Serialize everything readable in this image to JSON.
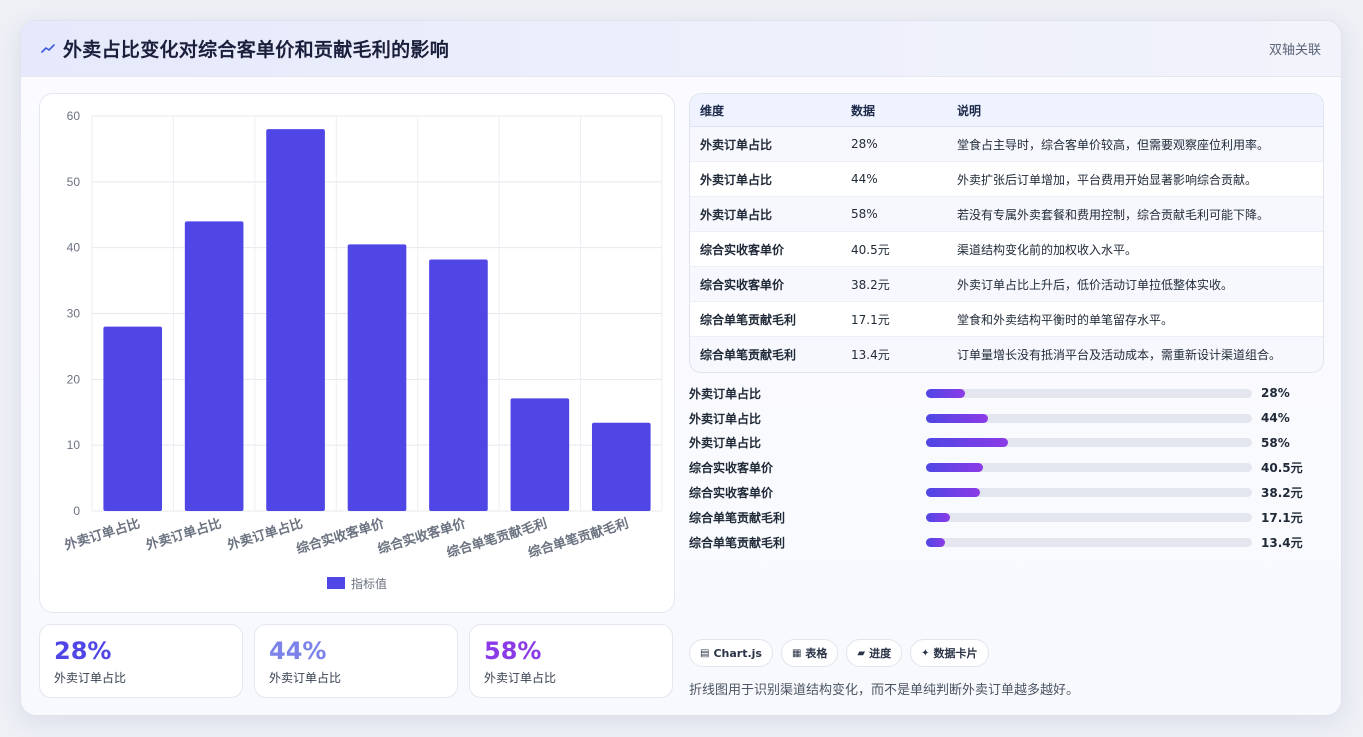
{
  "header": {
    "title": "外卖占比变化对综合客单价和贡献毛利的影响",
    "tag": "双轴关联"
  },
  "chart_data": {
    "type": "bar",
    "categories": [
      "外卖订单占比",
      "外卖订单占比",
      "外卖订单占比",
      "综合实收客单价",
      "综合实收客单价",
      "综合单笔贡献毛利",
      "综合单笔贡献毛利"
    ],
    "series": [
      {
        "name": "指标值",
        "values": [
          28,
          44,
          58,
          40.5,
          38.2,
          17.1,
          13.4
        ]
      }
    ],
    "ylim": [
      0,
      60
    ],
    "yticks": [
      0,
      10,
      20,
      30,
      40,
      50,
      60
    ],
    "grid": true,
    "legend": "bottom",
    "color": "#4f46e5"
  },
  "stats": [
    {
      "value": "28%",
      "label": "外卖订单占比",
      "color": "#4f46e5"
    },
    {
      "value": "44%",
      "label": "外卖订单占比",
      "color": "#7c83e8"
    },
    {
      "value": "58%",
      "label": "外卖订单占比",
      "color": "#8b3be6"
    }
  ],
  "table": {
    "headers": [
      "维度",
      "数据",
      "说明"
    ],
    "rows": [
      [
        "外卖订单占比",
        "28%",
        "堂食占主导时，综合客单价较高，但需要观察座位利用率。"
      ],
      [
        "外卖订单占比",
        "44%",
        "外卖扩张后订单增加，平台费用开始显著影响综合贡献。"
      ],
      [
        "外卖订单占比",
        "58%",
        "若没有专属外卖套餐和费用控制，综合贡献毛利可能下降。"
      ],
      [
        "综合实收客单价",
        "40.5元",
        "渠道结构变化前的加权收入水平。"
      ],
      [
        "综合实收客单价",
        "38.2元",
        "外卖订单占比上升后，低价活动订单拉低整体实收。"
      ],
      [
        "综合单笔贡献毛利",
        "17.1元",
        "堂食和外卖结构平衡时的单笔留存水平。"
      ],
      [
        "综合单笔贡献毛利",
        "13.4元",
        "订单量增长没有抵消平台及活动成本，需重新设计渠道组合。"
      ]
    ]
  },
  "progress": [
    {
      "label": "外卖订单占比",
      "value": "28%",
      "fraction": 0.12
    },
    {
      "label": "外卖订单占比",
      "value": "44%",
      "fraction": 0.19
    },
    {
      "label": "外卖订单占比",
      "value": "58%",
      "fraction": 0.25
    },
    {
      "label": "综合实收客单价",
      "value": "40.5元",
      "fraction": 0.175
    },
    {
      "label": "综合实收客单价",
      "value": "38.2元",
      "fraction": 0.165
    },
    {
      "label": "综合单笔贡献毛利",
      "value": "17.1元",
      "fraction": 0.074
    },
    {
      "label": "综合单笔贡献毛利",
      "value": "13.4元",
      "fraction": 0.058
    }
  ],
  "pills": [
    {
      "icon": "▤",
      "icon_name": "chart-icon",
      "label": "Chart.js"
    },
    {
      "icon": "▦",
      "icon_name": "table-icon",
      "label": "表格"
    },
    {
      "icon": "▰",
      "icon_name": "progress-icon",
      "label": "进度"
    },
    {
      "icon": "✦",
      "icon_name": "sparkle-icon",
      "label": "数据卡片"
    }
  ],
  "footnote": "折线图用于识别渠道结构变化，而不是单纯判断外卖订单越多越好。"
}
